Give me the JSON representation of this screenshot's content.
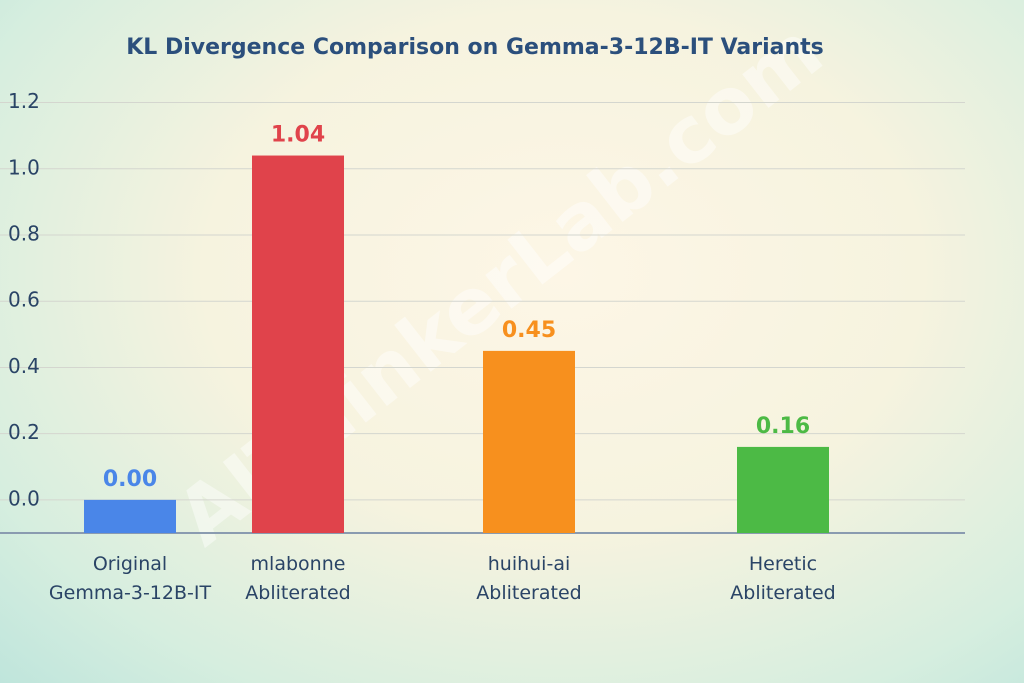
{
  "chart_data": {
    "type": "bar",
    "title": "KL Divergence Comparison on Gemma-3-12B-IT Variants",
    "watermark": "AIThinkerLab.com",
    "categories": [
      "Original\nGemma-3-12B-IT",
      "mlabonne\nAbliterated",
      "huihui-ai\nAbliterated",
      "Heretic\nAbliterated"
    ],
    "values": [
      0,
      1.04,
      0.45,
      0.16
    ],
    "value_labels": [
      "0.00",
      "1.04",
      "0.45",
      "0.16"
    ],
    "colors": [
      "#4a86e8",
      "#e0434b",
      "#f7901e",
      "#4cba45"
    ],
    "ylim": [
      -0.1,
      1.25
    ],
    "yticks": [
      {
        "value": 0,
        "label": "0.0"
      },
      0.2,
      0.4,
      0.6,
      0.8,
      {
        "value": 1,
        "label": "1.0"
      },
      1.2
    ],
    "grid": true
  }
}
